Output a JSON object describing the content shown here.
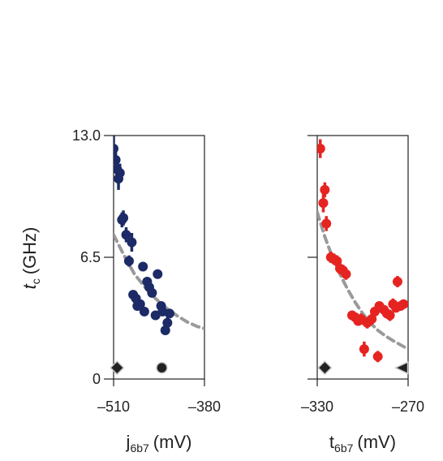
{
  "figure": {
    "ylabel": "t",
    "ylabel_sub": "c",
    "ylabel_unit": "(GHz)"
  },
  "chart_data": [
    {
      "type": "scatter",
      "title": "",
      "xlabel": "j",
      "xlabel_sub": "6b7",
      "xlabel_unit": "(mV)",
      "ylabel": "t_c (GHz)",
      "xlim": [
        -510,
        -380
      ],
      "ylim": [
        0,
        13.0
      ],
      "x_ticks": [
        -510,
        -380
      ],
      "x_tick_labels": [
        "–510",
        "–380"
      ],
      "y_ticks": [
        0,
        6.5,
        13.0
      ],
      "y_tick_labels": [
        "0",
        "6.5",
        "13.0"
      ],
      "grid": false,
      "color": "#1c2a66",
      "fit_color": "#9a9a9a",
      "fit": {
        "style": "dashed",
        "points": [
          [
            -510,
            7.7
          ],
          [
            -495,
            6.6
          ],
          [
            -480,
            5.6
          ],
          [
            -465,
            4.9
          ],
          [
            -450,
            4.3
          ],
          [
            -435,
            3.8
          ],
          [
            -420,
            3.4
          ],
          [
            -405,
            3.05
          ],
          [
            -390,
            2.8
          ],
          [
            -380,
            2.7
          ]
        ]
      },
      "points": [
        {
          "x": -510,
          "y": 12.3,
          "err": 0.7
        },
        {
          "x": -507,
          "y": 11.7,
          "err": 0.5
        },
        {
          "x": -505,
          "y": 11.2,
          "err": 0.5
        },
        {
          "x": -503,
          "y": 10.7,
          "err": 0.6
        },
        {
          "x": -501,
          "y": 11.0,
          "err": 0.5
        },
        {
          "x": -498,
          "y": 8.5,
          "err": 0.4
        },
        {
          "x": -496,
          "y": 8.6,
          "err": 0.4
        },
        {
          "x": -492,
          "y": 7.7,
          "err": 0.4
        },
        {
          "x": -488,
          "y": 6.3,
          "err": 0.3
        },
        {
          "x": -484,
          "y": 7.3,
          "err": 0.5
        },
        {
          "x": -482,
          "y": 4.5,
          "err": 0.2
        },
        {
          "x": -478,
          "y": 4.3,
          "err": 0.2
        },
        {
          "x": -476,
          "y": 3.9,
          "err": 0.2
        },
        {
          "x": -472,
          "y": 4.0,
          "err": 0.2
        },
        {
          "x": -468,
          "y": 6.0,
          "err": 0.2
        },
        {
          "x": -466,
          "y": 3.6,
          "err": 0.2
        },
        {
          "x": -462,
          "y": 5.2,
          "err": 0.2
        },
        {
          "x": -459,
          "y": 4.9,
          "err": 0.2
        },
        {
          "x": -455,
          "y": 4.6,
          "err": 0.2
        },
        {
          "x": -450,
          "y": 3.4,
          "err": 0.2
        },
        {
          "x": -447,
          "y": 5.6,
          "err": 0.2
        },
        {
          "x": -442,
          "y": 3.9,
          "err": 0.2
        },
        {
          "x": -440,
          "y": 3.6,
          "err": 0.2
        },
        {
          "x": -436,
          "y": 2.6,
          "err": 0.2
        },
        {
          "x": -433,
          "y": 3.0,
          "err": 0.3
        },
        {
          "x": -430,
          "y": 3.5,
          "err": 0.2
        }
      ],
      "markers": [
        {
          "shape": "diamond",
          "x": -505,
          "y": 0.6
        },
        {
          "shape": "circle",
          "x": -441,
          "y": 0.6
        }
      ]
    },
    {
      "type": "scatter",
      "title": "",
      "xlabel": "t",
      "xlabel_sub": "6b7",
      "xlabel_unit": "(mV)",
      "ylabel": "t_c (GHz)",
      "xlim": [
        -330,
        -270
      ],
      "ylim": [
        0,
        13.0
      ],
      "x_ticks": [
        -330,
        -270
      ],
      "x_tick_labels": [
        "–330",
        "–270"
      ],
      "y_ticks": [
        0,
        6.5,
        13.0
      ],
      "y_tick_labels": [
        "0",
        "6.5",
        "13.0"
      ],
      "grid": false,
      "color": "#e52421",
      "fit_color": "#9a9a9a",
      "fit": {
        "style": "dashed",
        "points": [
          [
            -330,
            8.9
          ],
          [
            -325,
            7.6
          ],
          [
            -320,
            6.5
          ],
          [
            -315,
            5.6
          ],
          [
            -310,
            4.8
          ],
          [
            -305,
            4.1
          ],
          [
            -300,
            3.5
          ],
          [
            -295,
            3.0
          ],
          [
            -290,
            2.6
          ],
          [
            -285,
            2.3
          ],
          [
            -280,
            2.05
          ],
          [
            -270,
            1.6
          ]
        ]
      },
      "points": [
        {
          "x": -328,
          "y": 12.3,
          "err": 0.5
        },
        {
          "x": -326,
          "y": 9.4,
          "err": 0.5
        },
        {
          "x": -325,
          "y": 10.1,
          "err": 0.4
        },
        {
          "x": -324,
          "y": 8.3,
          "err": 0.4
        },
        {
          "x": -321,
          "y": 6.5,
          "err": 0.3
        },
        {
          "x": -319,
          "y": 6.4,
          "err": 0.3
        },
        {
          "x": -317,
          "y": 6.3,
          "err": 0.3
        },
        {
          "x": -315,
          "y": 5.9,
          "err": 0.3
        },
        {
          "x": -313,
          "y": 5.8,
          "err": 0.3
        },
        {
          "x": -311,
          "y": 5.6,
          "err": 0.3
        },
        {
          "x": -307,
          "y": 3.4,
          "err": 0.2
        },
        {
          "x": -305,
          "y": 3.3,
          "err": 0.2
        },
        {
          "x": -303,
          "y": 3.1,
          "err": 0.2
        },
        {
          "x": -301,
          "y": 3.2,
          "err": 0.3
        },
        {
          "x": -299,
          "y": 1.6,
          "err": 0.4
        },
        {
          "x": -297,
          "y": 3.0,
          "err": 0.3
        },
        {
          "x": -294,
          "y": 3.2,
          "err": 0.3
        },
        {
          "x": -292,
          "y": 3.6,
          "err": 0.2
        },
        {
          "x": -290,
          "y": 1.2,
          "err": 0.3
        },
        {
          "x": -289,
          "y": 3.9,
          "err": 0.2
        },
        {
          "x": -286,
          "y": 3.7,
          "err": 0.2
        },
        {
          "x": -284,
          "y": 3.5,
          "err": 0.2
        },
        {
          "x": -282,
          "y": 3.4,
          "err": 0.3
        },
        {
          "x": -280,
          "y": 4.0,
          "err": 0.3
        },
        {
          "x": -278,
          "y": 3.8,
          "err": 0.2
        },
        {
          "x": -277,
          "y": 5.2,
          "err": 0.3
        },
        {
          "x": -275,
          "y": 3.9,
          "err": 0.2
        },
        {
          "x": -273,
          "y": 4.0,
          "err": 0.2
        }
      ],
      "markers": [
        {
          "shape": "diamond",
          "x": -325,
          "y": 0.6
        },
        {
          "shape": "triangle-left",
          "x": -274,
          "y": 0.6
        }
      ]
    }
  ]
}
